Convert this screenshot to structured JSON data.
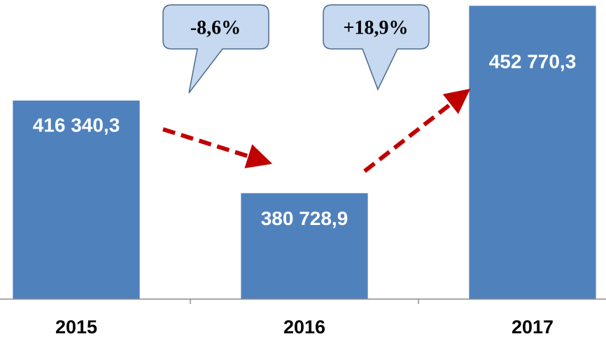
{
  "chart_data": {
    "type": "bar",
    "categories": [
      "2015",
      "2016",
      "2017"
    ],
    "values": [
      416340.3,
      380728.9,
      452770.3
    ],
    "value_labels": [
      "416 340,3",
      "380 728,9",
      "452 770,3"
    ],
    "color": "#4f81bd",
    "ylim": [
      340000,
      455000
    ],
    "annotations": [
      "-8,6%",
      "+18,9%"
    ]
  }
}
